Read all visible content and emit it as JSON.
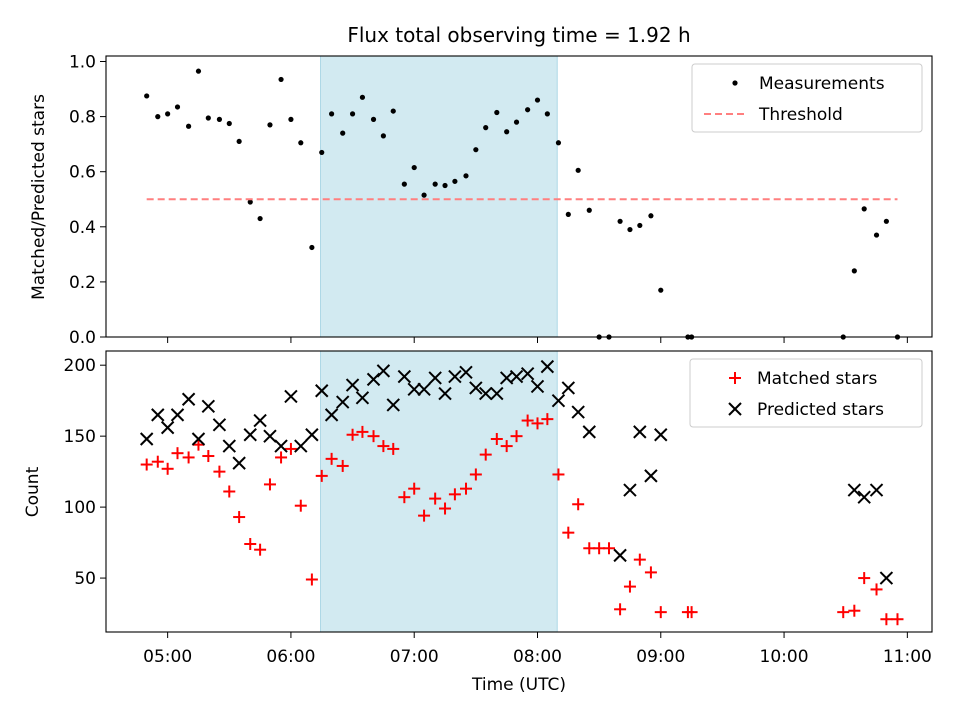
{
  "chart_data": {
    "title": "Flux total observing time = 1.92 h",
    "xlabel": "Time (UTC)",
    "x_unit": "hours UTC",
    "xlim": [
      4.5,
      11.2
    ],
    "xticks": [
      5,
      6,
      7,
      8,
      9,
      10,
      11
    ],
    "xtick_labels": [
      "05:00",
      "06:00",
      "07:00",
      "08:00",
      "09:00",
      "10:00",
      "11:00"
    ],
    "shaded_span": {
      "x": [
        6.24,
        8.16
      ],
      "color": "#add8e6"
    },
    "colors": {
      "measurements": "#000000",
      "threshold": "#ff7f7f",
      "matched": "#ff0000",
      "predicted": "#000000",
      "shade": "#add8e6"
    },
    "panels": [
      {
        "type": "scatter",
        "ylabel": "Matched/Predicted stars",
        "ylim": [
          0,
          1.02
        ],
        "yticks": [
          0,
          0.2,
          0.4,
          0.6,
          0.8,
          1.0
        ],
        "ytick_labels": [
          "0.0",
          "0.2",
          "0.4",
          "0.6",
          "0.8",
          "1.0"
        ],
        "legend_loc": "top-right",
        "legend": [
          "Measurements",
          "Threshold"
        ],
        "series": [
          {
            "name": "Measurements",
            "marker": "dot",
            "x": [
              4.83,
              4.92,
              5.0,
              5.08,
              5.17,
              5.25,
              5.33,
              5.42,
              5.5,
              5.58,
              5.67,
              5.75,
              5.83,
              5.92,
              6.0,
              6.08,
              6.17,
              6.25,
              6.33,
              6.42,
              6.5,
              6.58,
              6.67,
              6.75,
              6.83,
              6.92,
              7.0,
              7.08,
              7.17,
              7.25,
              7.33,
              7.42,
              7.5,
              7.58,
              7.67,
              7.75,
              7.83,
              7.92,
              8.0,
              8.08,
              8.17,
              8.25,
              8.33,
              8.42,
              8.5,
              8.58,
              8.67,
              8.75,
              8.83,
              8.92,
              9.0,
              9.22,
              9.25,
              10.48,
              10.57,
              10.65,
              10.75,
              10.83,
              10.92
            ],
            "y": [
              0.875,
              0.8,
              0.81,
              0.835,
              0.765,
              0.965,
              0.795,
              0.79,
              0.775,
              0.71,
              0.49,
              0.43,
              0.77,
              0.935,
              0.79,
              0.705,
              0.325,
              0.67,
              0.81,
              0.74,
              0.81,
              0.87,
              0.79,
              0.73,
              0.82,
              0.555,
              0.615,
              0.515,
              0.555,
              0.55,
              0.565,
              0.585,
              0.68,
              0.76,
              0.815,
              0.745,
              0.78,
              0.825,
              0.86,
              0.81,
              0.705,
              0.445,
              0.605,
              0.46,
              0.0,
              0.0,
              0.42,
              0.39,
              0.405,
              0.44,
              0.17,
              0.0,
              0.0,
              0.0,
              0.24,
              0.465,
              0.37,
              0.42,
              0.0
            ]
          },
          {
            "name": "Threshold",
            "marker": "dashed-line",
            "x": [
              4.83,
              10.92
            ],
            "y": [
              0.5,
              0.5
            ]
          }
        ]
      },
      {
        "type": "scatter",
        "ylabel": "Count",
        "ylim": [
          12,
          210
        ],
        "yticks": [
          50,
          100,
          150,
          200
        ],
        "ytick_labels": [
          "50",
          "100",
          "150",
          "200"
        ],
        "legend_loc": "top-right",
        "legend": [
          "Matched stars",
          "Predicted stars"
        ],
        "series": [
          {
            "name": "Matched stars",
            "marker": "plus",
            "x": [
              4.83,
              4.92,
              5.0,
              5.08,
              5.17,
              5.25,
              5.33,
              5.42,
              5.5,
              5.58,
              5.67,
              5.75,
              5.83,
              5.92,
              6.0,
              6.08,
              6.17,
              6.25,
              6.33,
              6.42,
              6.5,
              6.58,
              6.67,
              6.75,
              6.83,
              6.92,
              7.0,
              7.08,
              7.17,
              7.25,
              7.33,
              7.42,
              7.5,
              7.58,
              7.67,
              7.75,
              7.83,
              7.92,
              8.0,
              8.08,
              8.17,
              8.25,
              8.33,
              8.42,
              8.5,
              8.58,
              8.67,
              8.75,
              8.83,
              8.92,
              9.0,
              9.22,
              9.25,
              10.48,
              10.57,
              10.65,
              10.75,
              10.83,
              10.92
            ],
            "y": [
              130,
              132,
              127,
              138,
              135,
              144,
              136,
              125,
              111,
              93,
              74,
              70,
              116,
              135,
              141,
              101,
              49,
              122,
              134,
              129,
              151,
              153,
              150,
              143,
              141,
              107,
              113,
              94,
              106,
              99,
              109,
              113,
              123,
              137,
              148,
              143,
              150,
              161,
              159,
              162,
              123,
              82,
              102,
              71,
              71,
              71,
              28,
              44,
              63,
              54,
              26,
              26,
              26,
              26,
              27,
              50,
              42,
              21,
              21
            ]
          },
          {
            "name": "Predicted stars",
            "marker": "x",
            "x": [
              4.83,
              4.92,
              5.0,
              5.08,
              5.17,
              5.25,
              5.33,
              5.42,
              5.5,
              5.58,
              5.67,
              5.75,
              5.83,
              5.92,
              6.0,
              6.08,
              6.17,
              6.25,
              6.33,
              6.42,
              6.5,
              6.58,
              6.67,
              6.75,
              6.83,
              6.92,
              7.0,
              7.08,
              7.17,
              7.25,
              7.33,
              7.42,
              7.5,
              7.58,
              7.67,
              7.75,
              7.83,
              7.92,
              8.0,
              8.08,
              8.17,
              8.25,
              8.33,
              8.42,
              8.67,
              8.75,
              8.83,
              8.92,
              9.0,
              10.57,
              10.65,
              10.75,
              10.83
            ],
            "y": [
              148,
              165,
              156,
              165,
              176,
              148,
              171,
              158,
              143,
              131,
              151,
              161,
              150,
              143,
              178,
              143,
              151,
              182,
              165,
              174,
              186,
              177,
              190,
              196,
              172,
              192,
              183,
              183,
              191,
              180,
              192,
              195,
              184,
              180,
              180,
              191,
              192,
              194,
              185,
              199,
              175,
              184,
              167,
              153,
              66,
              112,
              153,
              122,
              151,
              112,
              107,
              112,
              50
            ]
          }
        ]
      }
    ]
  }
}
